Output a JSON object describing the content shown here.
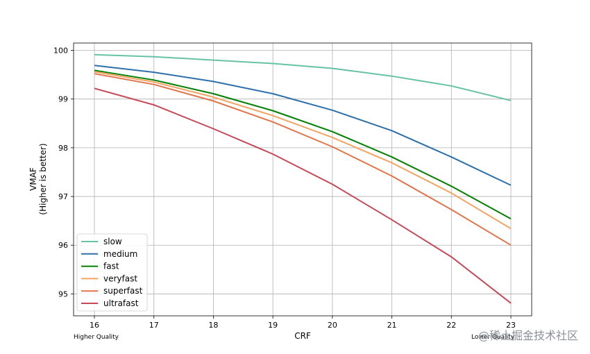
{
  "chart_data": {
    "type": "line",
    "x": [
      16,
      17,
      18,
      19,
      20,
      21,
      22,
      23
    ],
    "xlabel": "CRF",
    "ylabel_lines": [
      "VMAF",
      "(Higher is better)"
    ],
    "xlim": [
      15.65,
      23.35
    ],
    "ylim": [
      94.55,
      100.15
    ],
    "xticks": [
      16,
      17,
      18,
      19,
      20,
      21,
      22,
      23
    ],
    "yticks": [
      95,
      96,
      97,
      98,
      99,
      100
    ],
    "grid": true,
    "legend_position": "lower-left",
    "series": [
      {
        "name": "slow",
        "color": "#66c2a5",
        "values": [
          99.91,
          99.87,
          99.8,
          99.73,
          99.63,
          99.47,
          99.27,
          98.97
        ]
      },
      {
        "name": "medium",
        "color": "#2c6fac",
        "values": [
          99.69,
          99.55,
          99.36,
          99.11,
          98.77,
          98.35,
          97.81,
          97.23
        ]
      },
      {
        "name": "fast",
        "color": "#008000",
        "values": [
          99.59,
          99.39,
          99.11,
          98.76,
          98.33,
          97.81,
          97.21,
          96.54
        ]
      },
      {
        "name": "veryfast",
        "color": "#f4a460",
        "values": [
          99.56,
          99.35,
          99.04,
          98.66,
          98.21,
          97.69,
          97.07,
          96.34
        ]
      },
      {
        "name": "superfast",
        "color": "#e4744a",
        "values": [
          99.52,
          99.3,
          98.96,
          98.53,
          98.02,
          97.42,
          96.73,
          96.0
        ]
      },
      {
        "name": "ultrafast",
        "color": "#c94857",
        "values": [
          99.22,
          98.88,
          98.39,
          97.87,
          97.25,
          96.52,
          95.76,
          94.81
        ]
      }
    ],
    "annotations": {
      "left": "Higher Quality",
      "right": "Lower Quality"
    }
  },
  "watermark": "@稀土掘金技术社区"
}
